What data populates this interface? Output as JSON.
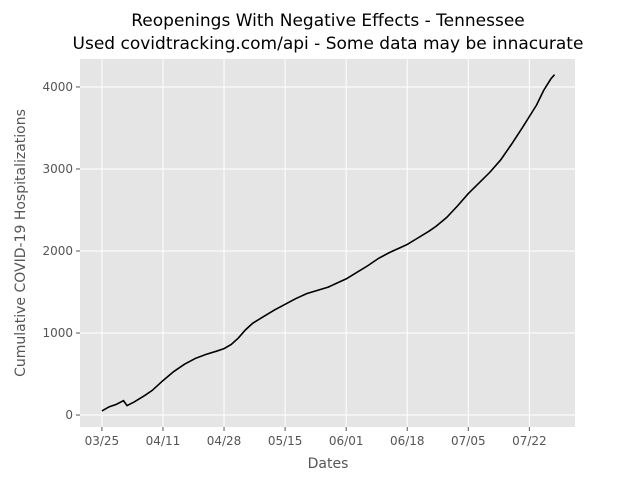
{
  "chart_data": {
    "type": "line",
    "title": "Reopenings With Negative Effects - Tennessee",
    "subtitle": "Used covidtracking.com/api - Some data may be innacurate",
    "x_label": "Dates",
    "y_label": "Cumulative COVID-19 Hospitalizations",
    "x": [
      0,
      2,
      4,
      6,
      7,
      9,
      12,
      14,
      17,
      20,
      23,
      26,
      29,
      32,
      34,
      36,
      38,
      40,
      42,
      45,
      48,
      51,
      54,
      57,
      60,
      63,
      66,
      68,
      71,
      74,
      77,
      80,
      83,
      85,
      88,
      91,
      93,
      96,
      99,
      102,
      105,
      108,
      111,
      114,
      117,
      119,
      121,
      123,
      125,
      126
    ],
    "series": [
      {
        "name": "Tennessee",
        "color": "#000000",
        "values": [
          50,
          100,
          130,
          175,
          115,
          160,
          240,
          300,
          420,
          530,
          620,
          690,
          740,
          780,
          810,
          860,
          940,
          1040,
          1120,
          1200,
          1280,
          1350,
          1420,
          1480,
          1520,
          1560,
          1620,
          1660,
          1740,
          1820,
          1910,
          1980,
          2040,
          2080,
          2160,
          2240,
          2300,
          2410,
          2550,
          2700,
          2830,
          2960,
          3110,
          3300,
          3500,
          3640,
          3780,
          3960,
          4100,
          4150
        ]
      }
    ],
    "xlim": [
      -6.1,
      131.7
    ],
    "xticks": [
      {
        "value": 0,
        "label": "03/25"
      },
      {
        "value": 17,
        "label": "04/11"
      },
      {
        "value": 34,
        "label": "04/28"
      },
      {
        "value": 51,
        "label": "05/15"
      },
      {
        "value": 68,
        "label": "06/01"
      },
      {
        "value": 85,
        "label": "06/18"
      },
      {
        "value": 102,
        "label": "07/05"
      },
      {
        "value": 119,
        "label": "07/22"
      }
    ],
    "ylim": [
      -146,
      4341
    ],
    "yticks": [
      0,
      1000,
      2000,
      3000,
      4000
    ],
    "grid": true
  }
}
